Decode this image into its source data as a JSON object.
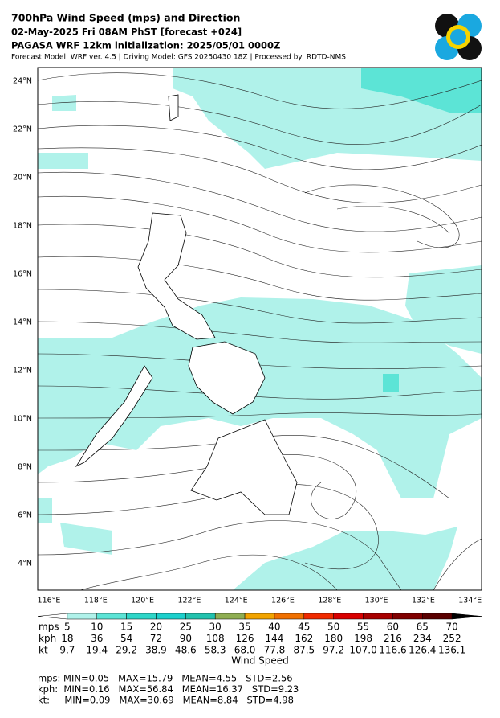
{
  "header": {
    "title": "700hPa Wind Speed (mps) and Direction",
    "valid": "02-May-2025 Fri 08AM PhST [forecast +024]",
    "init": "PAGASA WRF 12km initialization: 2025/05/01 0000Z",
    "source": "Forecast Model: WRF ver. 4.5 | Driving Model: GFS 20250430 18Z | Processed by: RDTD-NMS"
  },
  "map": {
    "lat_labels": [
      "24°N",
      "22°N",
      "20°N",
      "18°N",
      "16°N",
      "14°N",
      "12°N",
      "10°N",
      "8°N",
      "6°N",
      "4°N"
    ],
    "lon_labels": [
      "116°E",
      "118°E",
      "120°E",
      "122°E",
      "124°E",
      "126°E",
      "128°E",
      "130°E",
      "132°E",
      "134°E"
    ]
  },
  "colorbar": {
    "label": "Wind Speed",
    "rows": [
      {
        "unit": "mps",
        "values": [
          "5",
          "10",
          "15",
          "20",
          "25",
          "30",
          "35",
          "40",
          "45",
          "50",
          "55",
          "60",
          "65",
          "70"
        ]
      },
      {
        "unit": "kph",
        "values": [
          "18",
          "36",
          "54",
          "72",
          "90",
          "108",
          "126",
          "144",
          "162",
          "180",
          "198",
          "216",
          "234",
          "252"
        ]
      },
      {
        "unit": "kt",
        "values": [
          "9.7",
          "19.4",
          "29.2",
          "38.9",
          "48.6",
          "58.3",
          "68.0",
          "77.8",
          "87.5",
          "97.2",
          "107.0",
          "116.6",
          "126.4",
          "136.1"
        ]
      }
    ],
    "colors": [
      "#ffffff",
      "#b0f2ea",
      "#5ce4d6",
      "#2ed6c8",
      "#1cd0cc",
      "#22c2ae",
      "#8fae52",
      "#f2a400",
      "#f07000",
      "#f02a00",
      "#d80000",
      "#a80000",
      "#800000",
      "#5a0000",
      "#000000"
    ]
  },
  "stats": [
    "mps: MIN=0.05   MAX=15.79   MEAN=4.55   STD=2.56",
    "kph:  MIN=0.16   MAX=56.84   MEAN=16.37   STD=9.23",
    "kt:     MIN=0.09   MAX=30.69   MEAN=8.84   STD=4.98"
  ]
}
